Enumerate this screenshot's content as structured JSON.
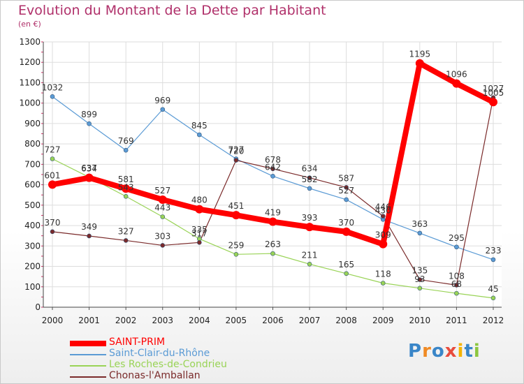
{
  "title": "Evolution du Montant de la Dette par Habitant",
  "subtitle": "(en €)",
  "logo_text": "Proxiti",
  "chart_data": {
    "type": "line",
    "title": "Evolution du Montant de la Dette par Habitant",
    "subtitle": "(en €)",
    "x": [
      "2000",
      "2001",
      "2002",
      "2003",
      "2004",
      "2005",
      "2006",
      "2007",
      "2008",
      "2009",
      "2010",
      "2011",
      "2012"
    ],
    "ylim": [
      0,
      1300
    ],
    "yticks": [
      0,
      100,
      200,
      300,
      400,
      500,
      600,
      700,
      800,
      900,
      1000,
      1100,
      1200,
      1300
    ],
    "grid": true,
    "legend_position": "bottom-left",
    "series": [
      {
        "name": "SAINT-PRIM",
        "color": "#ff0000",
        "values": [
          601,
          634,
          581,
          527,
          480,
          451,
          419,
          393,
          370,
          309,
          1195,
          1096,
          1005
        ]
      },
      {
        "name": "Saint-Clair-du-Rhône",
        "color": "#5b9bd5",
        "values": [
          1032,
          899,
          769,
          969,
          845,
          727,
          642,
          582,
          527,
          430,
          363,
          295,
          233
        ]
      },
      {
        "name": "Les Roches-de-Condrieu",
        "color": "#99d356",
        "values": [
          727,
          637,
          543,
          443,
          335,
          259,
          263,
          211,
          165,
          118,
          93,
          68,
          45
        ]
      },
      {
        "name": "Chonas-l'Amballan",
        "color": "#7a2a2a",
        "values": [
          370,
          349,
          327,
          303,
          317,
          720,
          678,
          634,
          587,
          446,
          135,
          108,
          1027
        ]
      }
    ]
  }
}
